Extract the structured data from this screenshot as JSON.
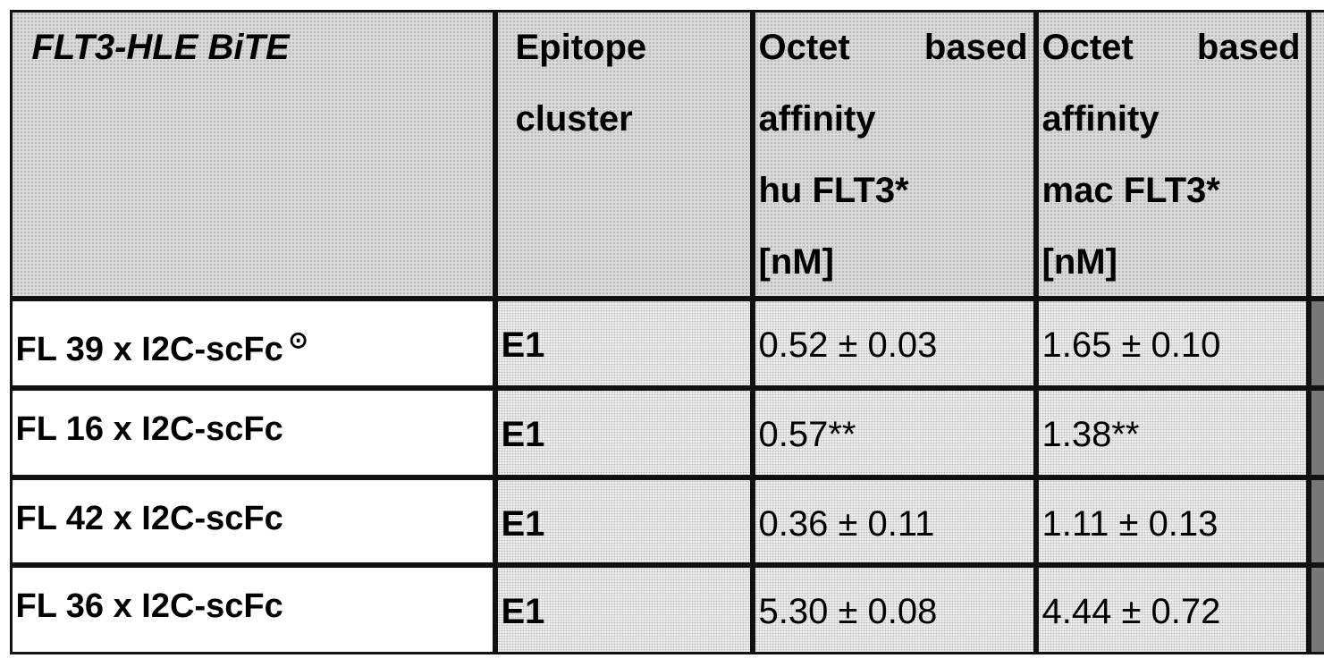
{
  "table": {
    "header": [
      [
        "FLT3-HLE BiTE"
      ],
      [
        "Epitope",
        "cluster"
      ],
      [
        "Octet based",
        "affinity",
        "hu FLT3*",
        "[nM]"
      ],
      [
        "Octet based",
        "affinity",
        "mac FLT3*",
        "[nM]"
      ]
    ],
    "rows": [
      {
        "name": "FL 39  x I2C-scFc",
        "mark": "⊙",
        "cells": [
          "E1",
          "0.52 ± 0.03",
          "1.65 ± 0.10"
        ]
      },
      {
        "name": "FL 16  x I2C-scFc",
        "cells": [
          "E1",
          "0.57**",
          "1.38**"
        ]
      },
      {
        "name": "FL 42 x I2C-scFc",
        "cells": [
          "E1",
          "0.36 ± 0.11",
          "1.11 ± 0.13"
        ]
      },
      {
        "name": "FL 36 x I2C-scFc",
        "cells": [
          "E1",
          "5.30 ± 0.08",
          "4.44 ± 0.72"
        ]
      }
    ]
  }
}
